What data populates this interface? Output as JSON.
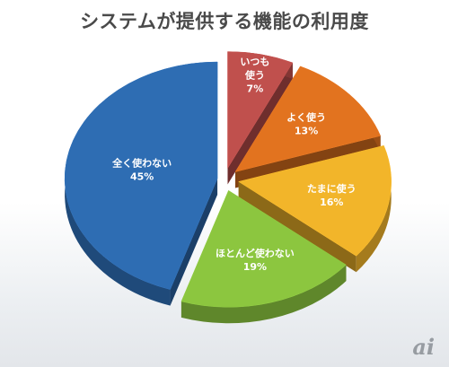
{
  "chart_data": {
    "type": "pie",
    "title": "システムが提供する機能の利用度",
    "slices": [
      {
        "label": "いつも使う",
        "label_lines": [
          "いつも",
          "使う"
        ],
        "value": 7,
        "value_label": "7%",
        "color": "#c0504d"
      },
      {
        "label": "よく使う",
        "label_lines": [
          "よく使う"
        ],
        "value": 13,
        "value_label": "13%",
        "color": "#e2731f"
      },
      {
        "label": "たまに使う",
        "label_lines": [
          "たまに使う"
        ],
        "value": 16,
        "value_label": "16%",
        "color": "#f2b52a"
      },
      {
        "label": "ほとんど使わない",
        "label_lines": [
          "ほとんど使わない"
        ],
        "value": 19,
        "value_label": "19%",
        "color": "#8cc63f"
      },
      {
        "label": "全く使わない",
        "label_lines": [
          "全く使わない"
        ],
        "value": 45,
        "value_label": "45%",
        "color": "#2e6db3"
      }
    ],
    "exploded": true,
    "style": "3d"
  },
  "watermark": "ai"
}
